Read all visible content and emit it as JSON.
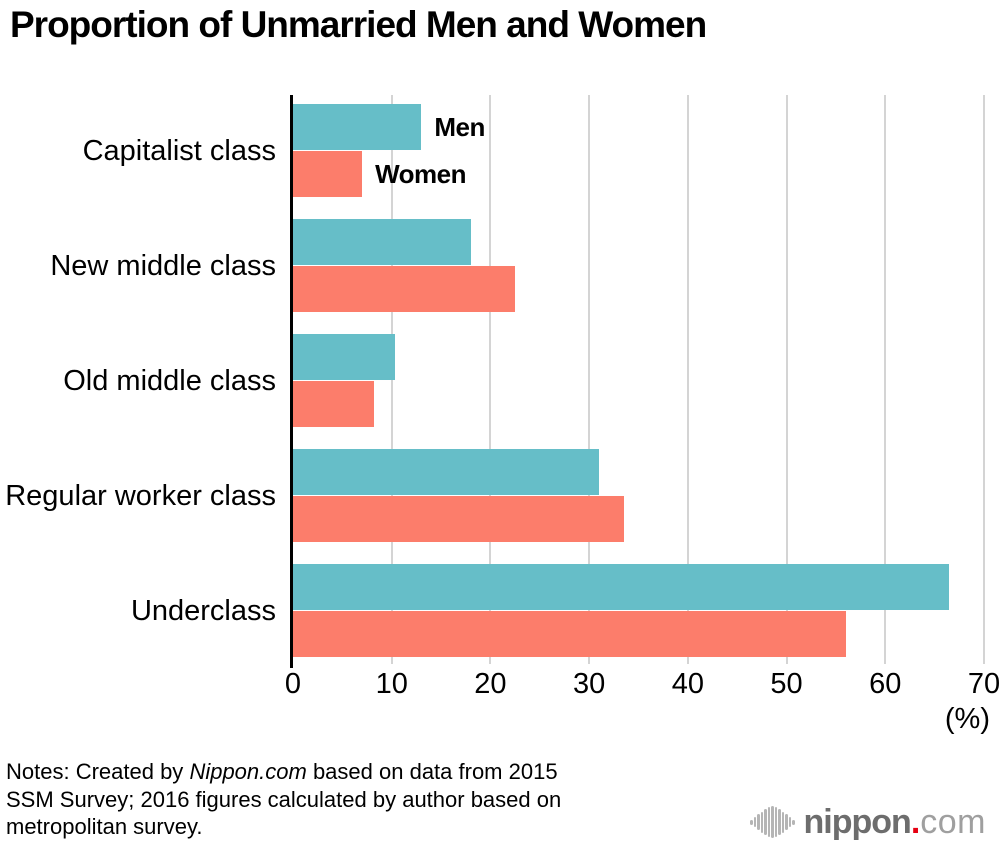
{
  "chart_data": {
    "type": "bar",
    "orientation": "horizontal",
    "title": "Proportion of Unmarried Men and Women",
    "categories": [
      "Capitalist class",
      "New middle class",
      "Old middle class",
      "Regular worker class",
      "Underclass"
    ],
    "series": [
      {
        "name": "Men",
        "color": "#66bec8",
        "values": [
          13,
          18,
          10.3,
          31,
          66.5
        ]
      },
      {
        "name": "Women",
        "color": "#fc7d6b",
        "values": [
          7,
          22.5,
          8.2,
          33.5,
          56
        ]
      }
    ],
    "xlim": [
      0,
      70
    ],
    "xticks": [
      0,
      10,
      20,
      30,
      40,
      50,
      60,
      70
    ],
    "x_unit_label": "(%)",
    "grid": true,
    "legend_position": "labels-beside-first-bars"
  },
  "notes": {
    "prefix": "Notes: Created by ",
    "source": "Nippon.com",
    "line1_rest": " based on data from 2015",
    "line2": "SSM Survey; 2016 figures calculated by author based on",
    "line3": "metropolitan survey."
  },
  "logo": {
    "name": "nippon",
    "dot": ".",
    "tld": "com"
  },
  "colors": {
    "men": "#66bec8",
    "women": "#fc7d6b",
    "grid": "#d4d4d4",
    "axis": "#000000",
    "text": "#000000",
    "logo_icon": "#b5b5b5",
    "logo_name": "#6d6d6d",
    "logo_dot": "#e60012",
    "logo_tld": "#9f9f9f"
  }
}
